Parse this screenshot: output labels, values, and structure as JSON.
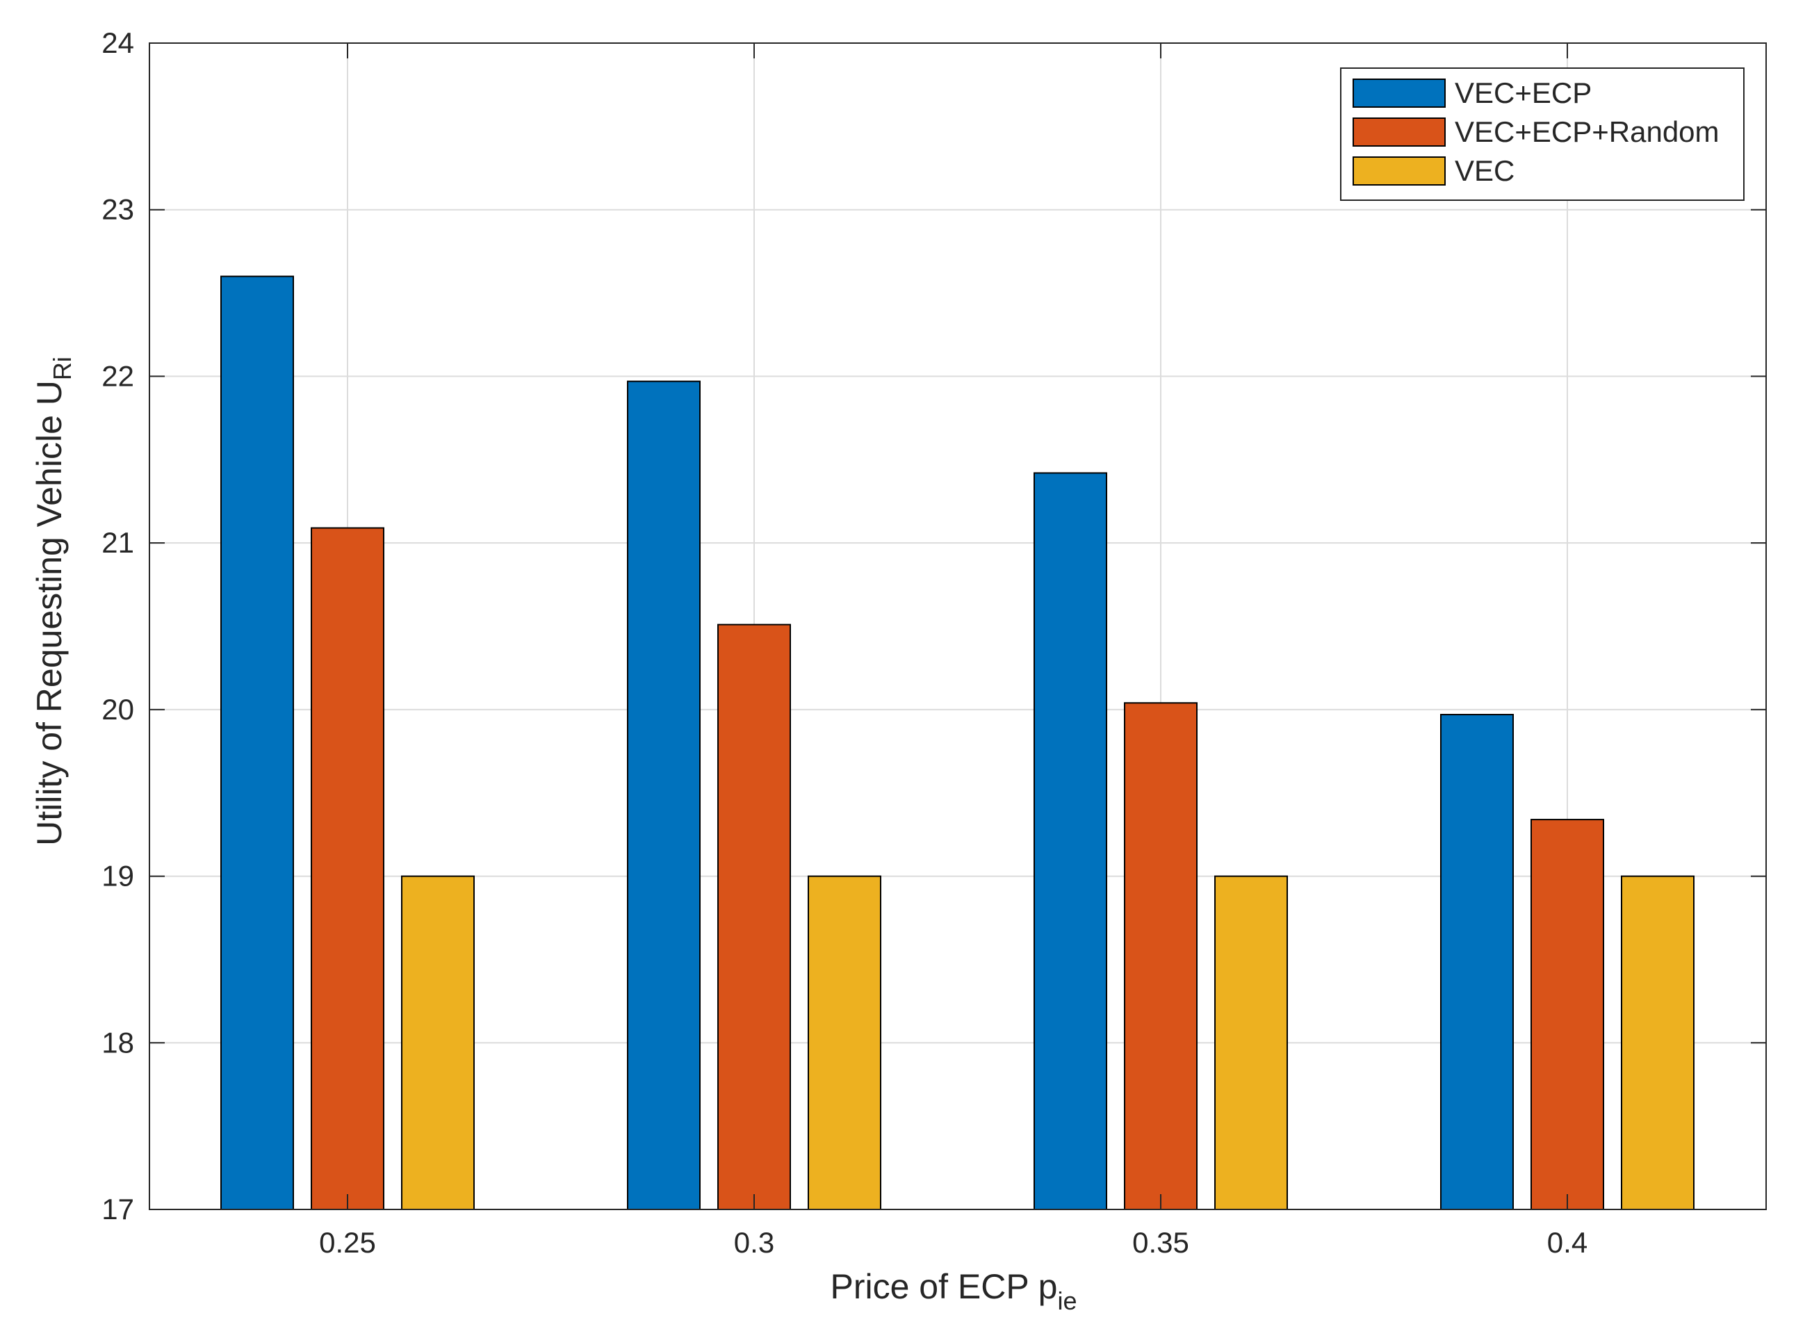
{
  "chart_data": {
    "type": "bar",
    "title": "",
    "xlabel": {
      "main": "Price of ECP p",
      "sub": "ie"
    },
    "ylabel": {
      "main": "Utility of Requesting Vehicle U",
      "sub": "Ri"
    },
    "categories": [
      "0.25",
      "0.3",
      "0.35",
      "0.4"
    ],
    "series": [
      {
        "name": "VEC+ECP",
        "color": "#0072BD",
        "values": [
          22.6,
          21.97,
          21.42,
          19.97
        ]
      },
      {
        "name": "VEC+ECP+Random",
        "color": "#D95319",
        "values": [
          21.09,
          20.51,
          20.04,
          19.34
        ]
      },
      {
        "name": "VEC",
        "color": "#EDB120",
        "values": [
          19.0,
          19.0,
          19.0,
          19.0
        ]
      }
    ],
    "ylim": [
      17,
      24
    ],
    "yticks": [
      17,
      18,
      19,
      20,
      21,
      22,
      23,
      24
    ],
    "grid": true,
    "legend_position": "top-right"
  }
}
